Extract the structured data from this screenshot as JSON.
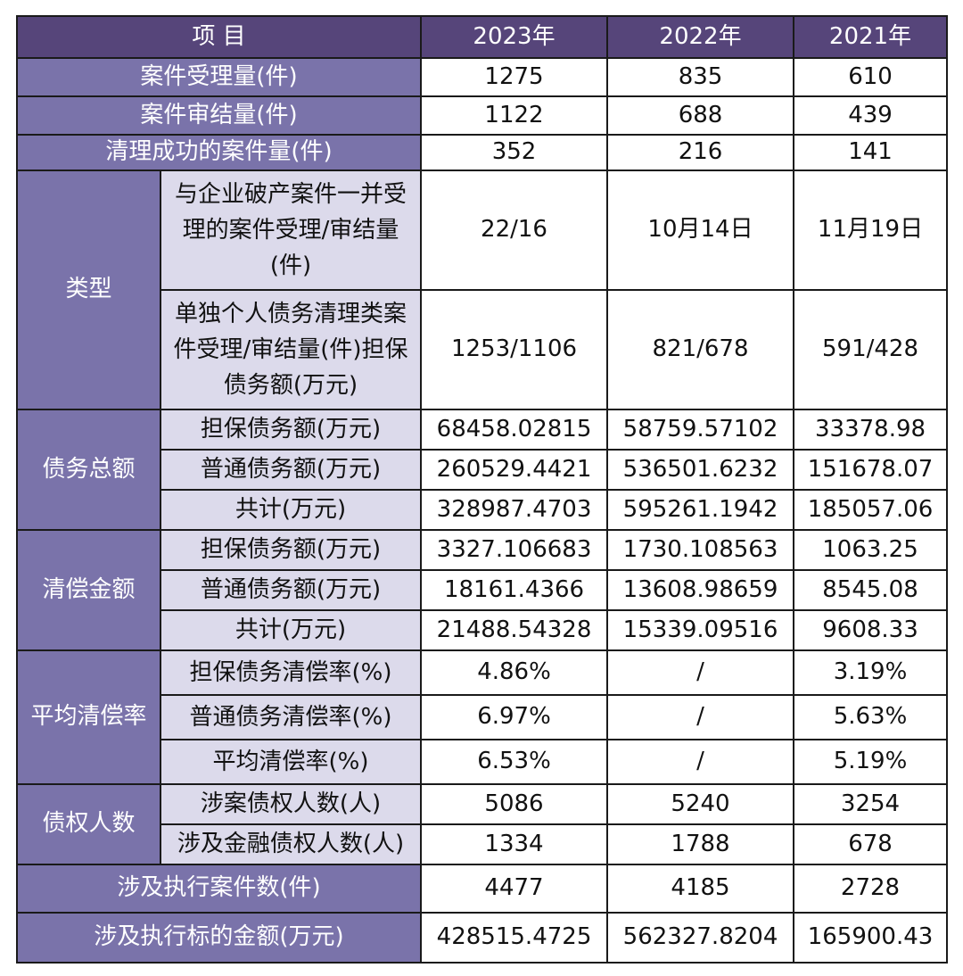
{
  "header": {
    "item": "项 目",
    "y2023": "2023年",
    "y2022": "2022年",
    "y2021": "2021年"
  },
  "rows": {
    "accepted": {
      "label": "案件受理量(件)",
      "v2023": "1275",
      "v2022": "835",
      "v2021": "610"
    },
    "concluded": {
      "label": "案件审结量(件)",
      "v2023": "1122",
      "v2022": "688",
      "v2021": "439"
    },
    "successful": {
      "label": "清理成功的案件量(件)",
      "v2023": "352",
      "v2022": "216",
      "v2021": "141"
    }
  },
  "type": {
    "group": "类型",
    "joint": {
      "label": "与企业破产案件一并受理的案件受理/审结量(件)",
      "v2023": "22/16",
      "v2022": "10月14日",
      "v2021": "11月19日"
    },
    "individual": {
      "label": "单独个人债务清理类案件受理/审结量(件)担保债务额(万元)",
      "v2023": "1253/1106",
      "v2022": "821/678",
      "v2021": "591/428"
    }
  },
  "debt_total": {
    "group": "债务总额",
    "secured": {
      "label": "担保债务额(万元)",
      "v2023": "68458.02815",
      "v2022": "58759.57102",
      "v2021": "33378.98"
    },
    "ordinary": {
      "label": "普通债务额(万元)",
      "v2023": "260529.4421",
      "v2022": "536501.6232",
      "v2021": "151678.07"
    },
    "sum": {
      "label": "共计(万元)",
      "v2023": "328987.4703",
      "v2022": "595261.1942",
      "v2021": "185057.06"
    }
  },
  "repayment": {
    "group": "清偿金额",
    "secured": {
      "label": "担保债务额(万元)",
      "v2023": "3327.106683",
      "v2022": "1730.108563",
      "v2021": "1063.25"
    },
    "ordinary": {
      "label": "普通债务额(万元)",
      "v2023": "18161.4366",
      "v2022": "13608.98659",
      "v2021": "8545.08"
    },
    "sum": {
      "label": "共计(万元)",
      "v2023": "21488.54328",
      "v2022": "15339.09516",
      "v2021": "9608.33"
    }
  },
  "avg_rate": {
    "group": "平均清偿率",
    "secured": {
      "label": "担保债务清偿率(%)",
      "v2023": "4.86%",
      "v2022": "/",
      "v2021": "3.19%"
    },
    "ordinary": {
      "label": "普通债务清偿率(%)",
      "v2023": "6.97%",
      "v2022": "/",
      "v2021": "5.63%"
    },
    "average": {
      "label": "平均清偿率(%)",
      "v2023": "6.53%",
      "v2022": "/",
      "v2021": "5.19%"
    }
  },
  "creditors": {
    "group": "债权人数",
    "involved": {
      "label": "涉案债权人数(人)",
      "v2023": "5086",
      "v2022": "5240",
      "v2021": "3254"
    },
    "financial": {
      "label": "涉及金融债权人数(人)",
      "v2023": "1334",
      "v2022": "1788",
      "v2021": "678"
    }
  },
  "execution": {
    "cases": {
      "label": "涉及执行案件数(件)",
      "v2023": "4477",
      "v2022": "4185",
      "v2021": "2728"
    },
    "amount": {
      "label": "涉及执行标的金额(万元)",
      "v2023": "428515.4725",
      "v2022": "562327.8204",
      "v2021": "165900.43"
    }
  }
}
